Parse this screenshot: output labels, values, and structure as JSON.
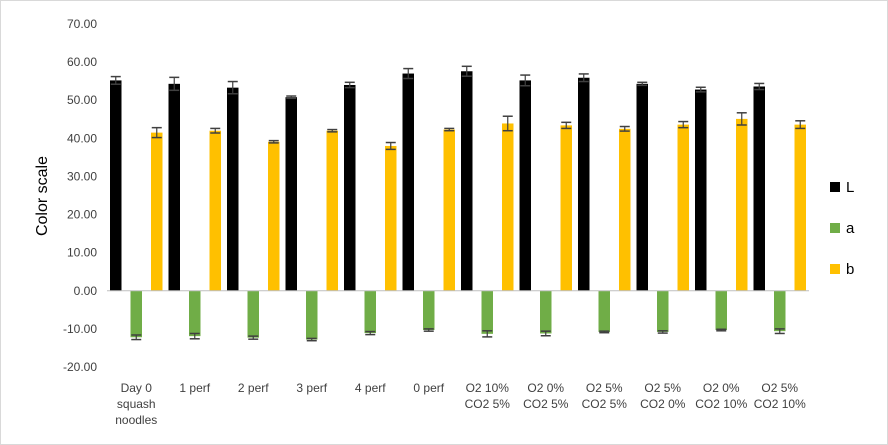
{
  "chart_data": {
    "type": "bar",
    "title": "",
    "xlabel": "",
    "ylabel": "Color scale",
    "ylim": [
      -20,
      70
    ],
    "ytick_step": 10,
    "ytick_labels": [
      "-20.00",
      "-10.00",
      "0.00",
      "10.00",
      "20.00",
      "30.00",
      "40.00",
      "50.00",
      "60.00",
      "70.00"
    ],
    "grid": false,
    "legend_position": "right",
    "categories": [
      [
        "Day 0",
        "squash",
        "noodles"
      ],
      [
        "1 perf"
      ],
      [
        "2 perf"
      ],
      [
        "3 perf"
      ],
      [
        "4 perf"
      ],
      [
        "0 perf"
      ],
      [
        "O2 10%",
        "CO2 5%"
      ],
      [
        "O2 0%",
        "CO2 5%"
      ],
      [
        "O2 5%",
        "CO2 5%"
      ],
      [
        "O2 5%",
        "CO2 0%"
      ],
      [
        "O2 0%",
        "CO2 10%"
      ],
      [
        "O2 5%",
        "CO2 10%"
      ]
    ],
    "series": [
      {
        "name": "L",
        "color": "#000000",
        "values": [
          55.2,
          54.3,
          53.3,
          50.8,
          54.0,
          57.0,
          57.6,
          55.2,
          55.9,
          54.3,
          52.8,
          53.6
        ],
        "errors": [
          1.0,
          1.7,
          1.6,
          0.3,
          0.7,
          1.3,
          1.3,
          1.4,
          1.0,
          0.4,
          0.6,
          0.8
        ]
      },
      {
        "name": "a",
        "color": "#70ad47",
        "values": [
          -12.2,
          -11.9,
          -12.3,
          -12.8,
          -11.1,
          -10.3,
          -11.3,
          -11.2,
          -10.8,
          -10.8,
          -10.3,
          -10.6
        ],
        "errors": [
          0.6,
          0.7,
          0.4,
          0.3,
          0.4,
          0.3,
          0.8,
          0.6,
          0.2,
          0.3,
          0.2,
          0.6
        ]
      },
      {
        "name": "b",
        "color": "#ffc000",
        "values": [
          41.5,
          42.0,
          39.1,
          42.0,
          38.0,
          42.3,
          43.9,
          43.4,
          42.5,
          43.6,
          45.1,
          43.6
        ],
        "errors": [
          1.3,
          0.6,
          0.3,
          0.3,
          0.9,
          0.3,
          1.9,
          0.8,
          0.6,
          0.8,
          1.6,
          1.0
        ]
      }
    ]
  }
}
